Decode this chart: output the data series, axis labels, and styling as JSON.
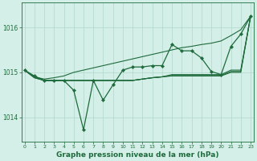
{
  "background_color": "#d4eee8",
  "grid_color": "#b0d8cc",
  "line_color": "#1e6b3c",
  "title": "Graphe pression niveau de la mer (hPa)",
  "yticks": [
    1014,
    1015,
    1016
  ],
  "ylim": [
    1013.45,
    1016.55
  ],
  "xlim": [
    -0.3,
    23.3
  ],
  "xticks": [
    0,
    1,
    2,
    3,
    4,
    5,
    6,
    7,
    8,
    9,
    10,
    11,
    12,
    13,
    14,
    15,
    16,
    17,
    18,
    19,
    20,
    21,
    22,
    23
  ],
  "series_main": [
    1015.05,
    1014.92,
    1014.82,
    1014.82,
    1014.82,
    1014.6,
    1013.72,
    1014.82,
    1014.38,
    1014.72,
    1015.05,
    1015.12,
    1015.12,
    1015.15,
    1015.15,
    1015.62,
    1015.48,
    1015.48,
    1015.32,
    1015.02,
    1014.95,
    1015.58,
    1015.85,
    1016.25
  ],
  "series_smooth1": [
    1015.05,
    1014.88,
    1014.82,
    1014.82,
    1014.82,
    1014.82,
    1014.82,
    1014.82,
    1014.82,
    1014.82,
    1014.82,
    1014.82,
    1014.85,
    1014.88,
    1014.9,
    1014.92,
    1014.92,
    1014.92,
    1014.92,
    1014.92,
    1014.92,
    1015.0,
    1015.0,
    1016.25
  ],
  "series_smooth2": [
    1015.05,
    1014.88,
    1014.82,
    1014.82,
    1014.82,
    1014.82,
    1014.82,
    1014.82,
    1014.82,
    1014.82,
    1014.82,
    1014.82,
    1014.85,
    1014.88,
    1014.9,
    1014.93,
    1014.93,
    1014.93,
    1014.93,
    1014.93,
    1014.93,
    1015.02,
    1015.02,
    1016.25
  ],
  "series_smooth3": [
    1015.05,
    1014.9,
    1014.82,
    1014.82,
    1014.82,
    1014.82,
    1014.82,
    1014.82,
    1014.82,
    1014.82,
    1014.82,
    1014.82,
    1014.85,
    1014.88,
    1014.9,
    1014.95,
    1014.95,
    1014.95,
    1014.95,
    1014.95,
    1014.95,
    1015.05,
    1015.05,
    1016.25
  ],
  "series_diagonal": [
    1015.05,
    1014.9,
    1014.85,
    1014.88,
    1014.92,
    1015.0,
    1015.05,
    1015.1,
    1015.15,
    1015.2,
    1015.25,
    1015.3,
    1015.35,
    1015.4,
    1015.45,
    1015.5,
    1015.55,
    1015.58,
    1015.62,
    1015.65,
    1015.7,
    1015.82,
    1015.95,
    1016.25
  ]
}
